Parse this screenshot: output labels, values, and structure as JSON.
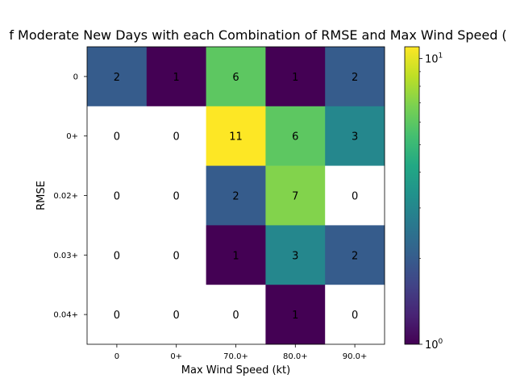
{
  "chart_data": {
    "type": "heatmap",
    "title": "f Moderate New Days with each Combination of RMSE and Max Wind Speed (",
    "xlabel": "Max Wind Speed (kt)",
    "ylabel": "RMSE",
    "x_categories": [
      "0",
      "0+",
      "70.0+",
      "80.0+",
      "90.0+"
    ],
    "y_categories": [
      "0",
      "0+",
      "0.02+",
      "0.03+",
      "0.04+"
    ],
    "values": [
      [
        2,
        1,
        6,
        1,
        2
      ],
      [
        0,
        0,
        11,
        6,
        3
      ],
      [
        0,
        0,
        2,
        7,
        0
      ],
      [
        0,
        0,
        1,
        3,
        2
      ],
      [
        0,
        0,
        0,
        1,
        0
      ]
    ],
    "colorscale": "viridis",
    "color_scale_type": "log",
    "color_range": [
      1,
      11
    ],
    "zero_color": "#ffffff",
    "colorbar": {
      "major_tick_labels": [
        {
          "base": "10",
          "exp": "0",
          "value": 1
        },
        {
          "base": "10",
          "exp": "1",
          "value": 10
        }
      ]
    }
  }
}
